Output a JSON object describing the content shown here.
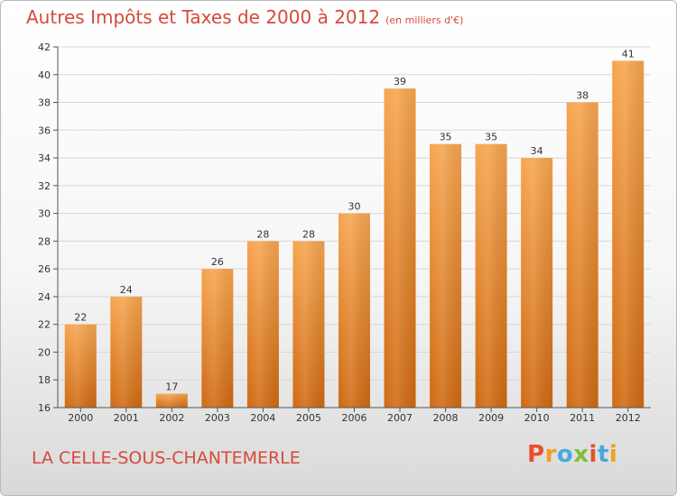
{
  "title": "Autres Impôts et Taxes de 2000 à 2012",
  "unit": "(en milliers d'€)",
  "place": "LA CELLE-SOUS-CHANTEMERLE",
  "logo": "Proxiti",
  "colors": {
    "bar": "#f08a28",
    "title": "#d64a3a",
    "grid": "#d8d8d8"
  },
  "chart_data": {
    "type": "bar",
    "categories": [
      "2000",
      "2001",
      "2002",
      "2003",
      "2004",
      "2005",
      "2006",
      "2007",
      "2008",
      "2009",
      "2010",
      "2011",
      "2012"
    ],
    "values": [
      22,
      24,
      17,
      26,
      28,
      28,
      30,
      39,
      35,
      35,
      34,
      38,
      41
    ],
    "ylim": [
      16,
      42
    ],
    "yticks": [
      16,
      18,
      20,
      22,
      24,
      26,
      28,
      30,
      32,
      34,
      36,
      38,
      40,
      42
    ],
    "grid": true
  }
}
